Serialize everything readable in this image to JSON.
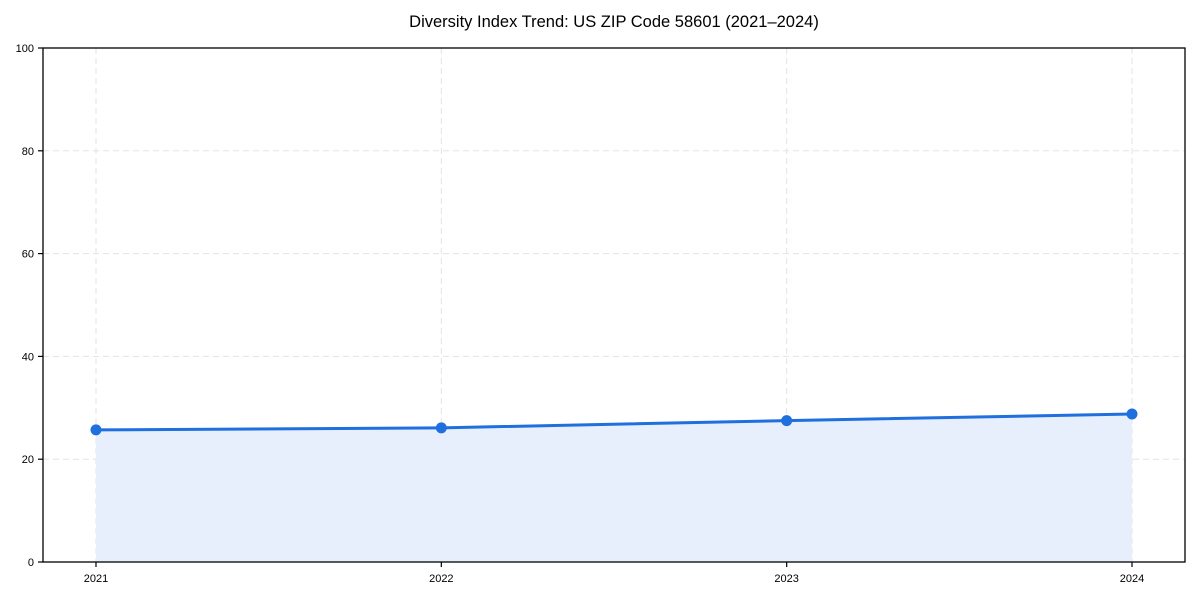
{
  "chart_data": {
    "type": "line",
    "title": "Diversity Index Trend: US ZIP Code 58601 (2021–2024)",
    "categories": [
      "2021",
      "2022",
      "2023",
      "2024"
    ],
    "series": [
      {
        "name": "Diversity Index",
        "values": [
          25.7,
          26.1,
          27.5,
          28.8
        ]
      }
    ],
    "xlabel": "",
    "ylabel": "",
    "ylim": [
      0,
      100
    ],
    "yticks": [
      0,
      20,
      40,
      60,
      80,
      100
    ],
    "grid": "both-dashed",
    "legend": "none",
    "area_fill": true,
    "markers": true,
    "colors": {
      "line": "#1f6fde",
      "marker": "#1f6fde",
      "fill": "#e7effc",
      "grid": "#e3e3e3",
      "axis": "#000000",
      "text": "#000000"
    }
  }
}
